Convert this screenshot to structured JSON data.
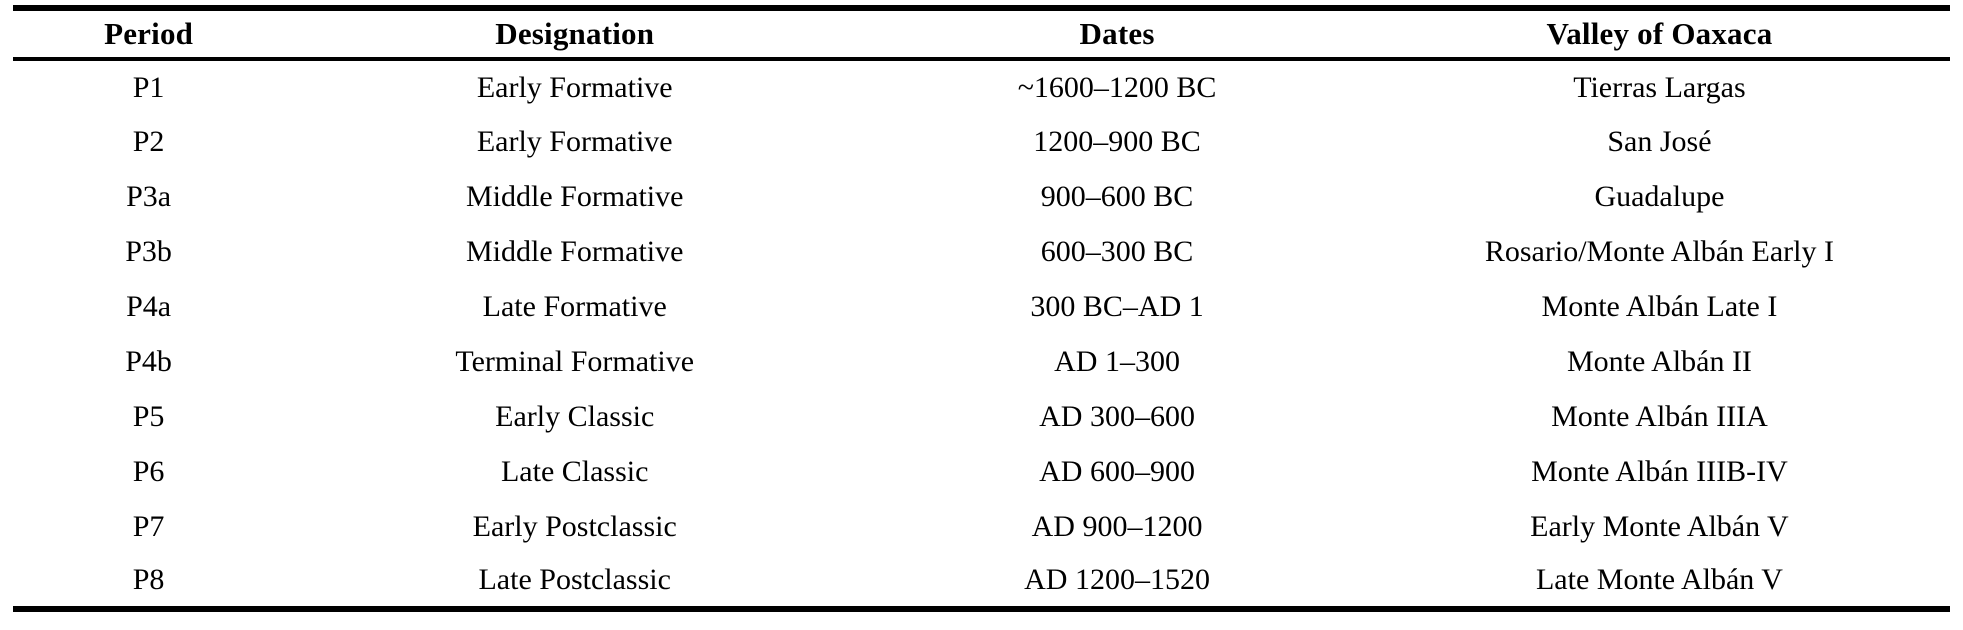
{
  "table": {
    "columns": [
      "Period",
      "Designation",
      "Dates",
      "Valley of Oaxaca"
    ],
    "rows": [
      {
        "period": "P1",
        "designation": "Early Formative",
        "dates": "~1600–1200 BC",
        "valley": "Tierras Largas"
      },
      {
        "period": "P2",
        "designation": "Early Formative",
        "dates": "1200–900 BC",
        "valley": "San José"
      },
      {
        "period": "P3a",
        "designation": "Middle Formative",
        "dates": "900–600 BC",
        "valley": "Guadalupe"
      },
      {
        "period": "P3b",
        "designation": "Middle Formative",
        "dates": "600–300 BC",
        "valley": "Rosario/Monte Albán Early I"
      },
      {
        "period": "P4a",
        "designation": "Late Formative",
        "dates": "300 BC–AD 1",
        "valley": "Monte Albán Late I"
      },
      {
        "period": "P4b",
        "designation": "Terminal Formative",
        "dates": "AD 1–300",
        "valley": "Monte Albán II"
      },
      {
        "period": "P5",
        "designation": "Early Classic",
        "dates": "AD 300–600",
        "valley": "Monte Albán IIIA"
      },
      {
        "period": "P6",
        "designation": "Late Classic",
        "dates": "AD 600–900",
        "valley": "Monte Albán IIIB-IV"
      },
      {
        "period": "P7",
        "designation": "Early Postclassic",
        "dates": "AD 900–1200",
        "valley": "Early Monte Albán V"
      },
      {
        "period": "P8",
        "designation": "Late Postclassic",
        "dates": "AD 1200–1520",
        "valley": "Late Monte Albán V"
      }
    ],
    "colors": {
      "rule": "#000000",
      "text": "#000000",
      "background": "#ffffff"
    }
  }
}
